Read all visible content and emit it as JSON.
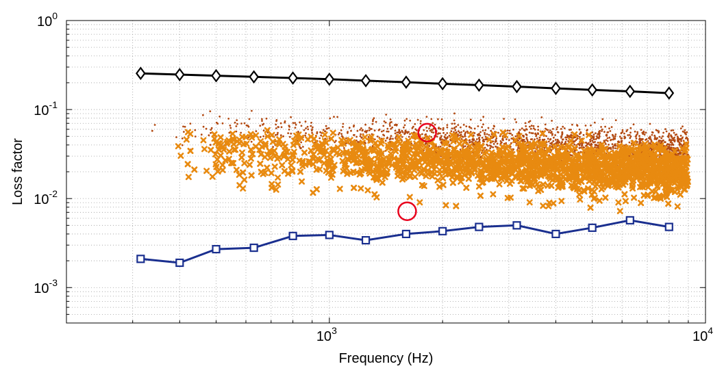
{
  "chart_data": {
    "type": "scatter",
    "title": "",
    "xlabel": "Frequency (Hz)",
    "ylabel": "Loss factor",
    "xscale": "log",
    "yscale": "log",
    "xlim": [
      200,
      10000
    ],
    "ylim": [
      0.0004,
      1
    ],
    "grid": true,
    "legend": "none",
    "x_ticks": [
      {
        "base": "10",
        "exp": "3",
        "value": 1000
      },
      {
        "base": "10",
        "exp": "4",
        "value": 10000
      }
    ],
    "y_ticks": [
      {
        "base": "10",
        "exp": "0",
        "value": 1
      },
      {
        "base": "10",
        "exp": "-1",
        "value": 0.1
      },
      {
        "base": "10",
        "exp": "-2",
        "value": 0.01
      },
      {
        "base": "10",
        "exp": "-3",
        "value": 0.001
      }
    ],
    "series": [
      {
        "style": "line-diamond",
        "color": "#000000",
        "x": [
          315,
          400,
          500,
          630,
          800,
          1000,
          1250,
          1600,
          2000,
          2500,
          3150,
          4000,
          5000,
          6300,
          8000
        ],
        "y": [
          0.255,
          0.247,
          0.24,
          0.233,
          0.226,
          0.219,
          0.211,
          0.203,
          0.195,
          0.188,
          0.181,
          0.173,
          0.166,
          0.16,
          0.153
        ]
      },
      {
        "style": "line-square",
        "color": "#1a2f8f",
        "x": [
          315,
          400,
          500,
          630,
          800,
          1000,
          1250,
          1600,
          2000,
          2500,
          3150,
          4000,
          5000,
          6300,
          8000
        ],
        "y": [
          0.0021,
          0.0019,
          0.0027,
          0.0028,
          0.0038,
          0.0039,
          0.0034,
          0.004,
          0.0043,
          0.0048,
          0.005,
          0.004,
          0.0047,
          0.0057,
          0.0048
        ]
      },
      {
        "style": "dots",
        "color": "#b34a12",
        "count": 1800,
        "x_range": [
          320,
          9000
        ],
        "trend_start": 0.06,
        "trend_end": 0.038,
        "spread": 0.55
      },
      {
        "style": "cross",
        "color": "#e88a10",
        "count": 2600,
        "x_range": [
          315,
          9000
        ],
        "trend_start": 0.038,
        "trend_end": 0.021,
        "spread": 0.7
      }
    ],
    "highlights": [
      {
        "x": 1820,
        "y": 0.055,
        "color": "#e8001c"
      },
      {
        "x": 1610,
        "y": 0.0072,
        "color": "#e8001c"
      }
    ]
  }
}
